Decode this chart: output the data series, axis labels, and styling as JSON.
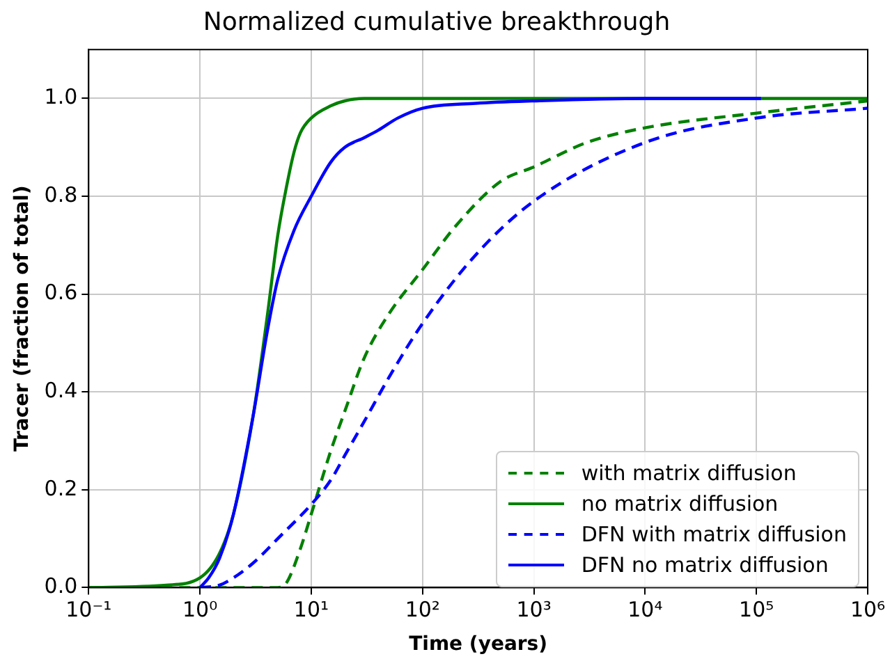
{
  "chart_data": {
    "type": "line",
    "title": "Normalized cumulative breakthrough",
    "xlabel": "Time (years)",
    "ylabel": "Tracer (fraction of total)",
    "log": "x",
    "grid": true,
    "legend": "bottom right",
    "marker": "none",
    "xlim": [
      0.1,
      1000000
    ],
    "xticks": [
      {
        "value": 0.1,
        "label": "10⁻¹"
      },
      {
        "value": 1,
        "label": "10⁰"
      },
      {
        "value": 10,
        "label": "10¹"
      },
      {
        "value": 100,
        "label": "10²"
      },
      {
        "value": 1000,
        "label": "10³"
      },
      {
        "value": 10000,
        "label": "10⁴"
      },
      {
        "value": 100000,
        "label": "10⁵"
      },
      {
        "value": 1000000,
        "label": "10⁶"
      }
    ],
    "ylim": [
      0,
      1.1
    ],
    "yticks": [
      {
        "value": 0,
        "label": "0.0"
      },
      {
        "value": 0.2,
        "label": "0.2"
      },
      {
        "value": 0.4,
        "label": "0.4"
      },
      {
        "value": 0.6,
        "label": "0.6"
      },
      {
        "value": 0.8,
        "label": "0.8"
      },
      {
        "value": 1,
        "label": "1.0"
      }
    ],
    "series": [
      {
        "name": "with matrix diffusion",
        "color": "#008000",
        "line_style": "dashed",
        "x": [
          0.1,
          1,
          5,
          6,
          8,
          10,
          15,
          20,
          30,
          50,
          100,
          200,
          500,
          1000,
          3000,
          10000,
          100000,
          1000000
        ],
        "values": [
          0,
          0,
          0,
          0.01,
          0.08,
          0.15,
          0.28,
          0.36,
          0.47,
          0.56,
          0.65,
          0.74,
          0.83,
          0.86,
          0.91,
          0.94,
          0.97,
          0.995
        ]
      },
      {
        "name": "no matrix diffusion",
        "color": "#008000",
        "line_style": "solid",
        "x": [
          0.1,
          0.5,
          1,
          1.5,
          2,
          3,
          4,
          5,
          6,
          7,
          8,
          10,
          15,
          20,
          30,
          100,
          1000000
        ],
        "values": [
          0,
          0.005,
          0.02,
          0.07,
          0.15,
          0.35,
          0.55,
          0.72,
          0.82,
          0.89,
          0.93,
          0.96,
          0.985,
          0.995,
          1,
          1,
          1
        ]
      },
      {
        "name": "DFN with matrix diffusion",
        "color": "#0000ff",
        "line_style": "dashed",
        "x": [
          1,
          1.5,
          2,
          3,
          5,
          10,
          15,
          20,
          30,
          50,
          100,
          300,
          1000,
          10000,
          100000,
          1000000
        ],
        "values": [
          0,
          0.005,
          0.02,
          0.05,
          0.1,
          0.17,
          0.22,
          0.27,
          0.34,
          0.43,
          0.54,
          0.68,
          0.79,
          0.91,
          0.96,
          0.98
        ]
      },
      {
        "name": "DFN no matrix diffusion",
        "color": "#0000ff",
        "line_style": "solid",
        "x": [
          1,
          1.2,
          1.5,
          2,
          3,
          4,
          5,
          7,
          10,
          15,
          20,
          30,
          40,
          60,
          100,
          300,
          1000,
          10000,
          110000
        ],
        "values": [
          0,
          0.02,
          0.06,
          0.15,
          0.35,
          0.52,
          0.63,
          0.73,
          0.8,
          0.87,
          0.9,
          0.92,
          0.935,
          0.96,
          0.98,
          0.99,
          0.995,
          1,
          1
        ]
      }
    ]
  }
}
